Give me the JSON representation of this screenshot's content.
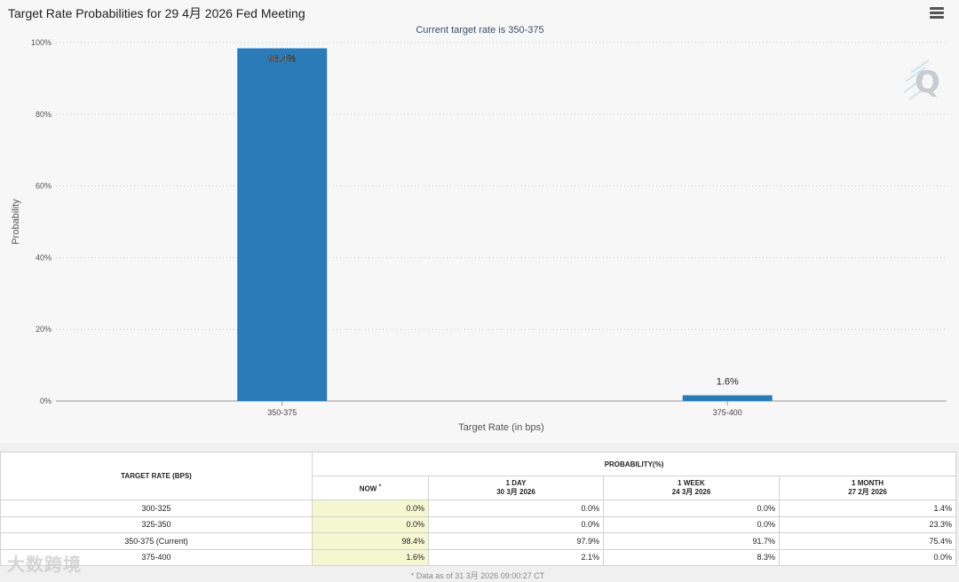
{
  "header": {
    "title": "Target Rate Probabilities for 29 4月 2026 Fed Meeting",
    "menu_icon": "hamburger-menu-icon"
  },
  "chart_data": {
    "type": "bar",
    "subtitle": "Current target rate is 350-375",
    "categories": [
      "350-375",
      "375-400"
    ],
    "values": [
      98.4,
      1.6
    ],
    "value_labels": [
      "98.4%",
      "1.6%"
    ],
    "xlabel": "Target Rate (in bps)",
    "ylabel": "Probability",
    "ylim": [
      0,
      100
    ],
    "yticks": [
      "0%",
      "20%",
      "40%",
      "60%",
      "80%",
      "100%"
    ],
    "grid": true,
    "bar_color": "#2b7bb9"
  },
  "table": {
    "col_rate_header": "TARGET RATE (BPS)",
    "prob_header": "PROBABILITY(%)",
    "now_header": "NOW",
    "now_marker": "*",
    "day_header": "1 DAY",
    "day_date": "30 3月 2026",
    "week_header": "1 WEEK",
    "week_date": "24 3月 2026",
    "month_header": "1 MONTH",
    "month_date": "27 2月 2026",
    "rows": [
      {
        "rate": "300-325",
        "now": "0.0%",
        "day": "0.0%",
        "week": "0.0%",
        "month": "1.4%"
      },
      {
        "rate": "325-350",
        "now": "0.0%",
        "day": "0.0%",
        "week": "0.0%",
        "month": "23.3%"
      },
      {
        "rate": "350-375 (Current)",
        "now": "98.4%",
        "day": "97.9%",
        "week": "91.7%",
        "month": "75.4%"
      },
      {
        "rate": "375-400",
        "now": "1.6%",
        "day": "2.1%",
        "week": "8.3%",
        "month": "0.0%"
      }
    ],
    "footnote": "* Data as of 31 3月 2026 09:00:27 CT"
  },
  "watermark": "大数跨境"
}
